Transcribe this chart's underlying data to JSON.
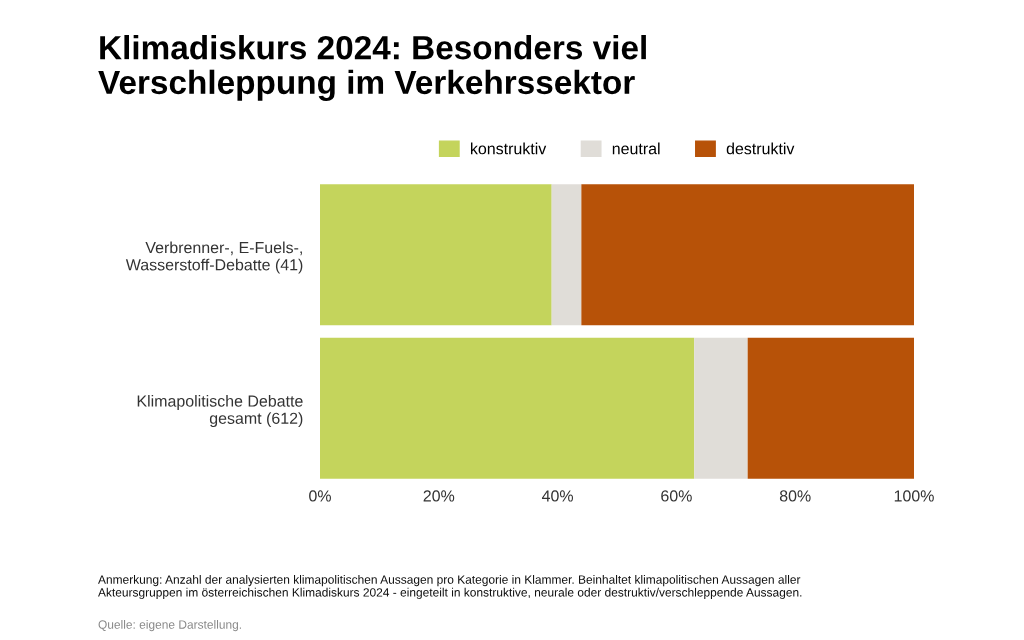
{
  "chart_data": {
    "type": "bar",
    "orientation": "horizontal",
    "stacked": true,
    "title": "Klimadiskurs 2024: Besonders viel\nVerschleppung im Verkehrssektor",
    "categories": [
      "Verbrenner-, E-Fuels-,\nWasserstoff-Debatte (41)",
      "Klimapolitische Debatte\ngesamt (612)"
    ],
    "series": [
      {
        "name": "konstruktiv",
        "color": "#c4d45c",
        "values": [
          39,
          63
        ]
      },
      {
        "name": "neutral",
        "color": "#e0ddd8",
        "values": [
          5,
          9
        ]
      },
      {
        "name": "destruktiv",
        "color": "#b75208",
        "values": [
          56,
          28
        ]
      }
    ],
    "xlim": [
      0,
      100
    ],
    "xticks": [
      {
        "value": 0,
        "label": "0%"
      },
      {
        "value": 20,
        "label": "20%"
      },
      {
        "value": 40,
        "label": "40%"
      },
      {
        "value": 60,
        "label": "60%"
      },
      {
        "value": 80,
        "label": "80%"
      },
      {
        "value": 100,
        "label": "100%"
      }
    ],
    "grid": false,
    "legend": "top",
    "annotations": [
      "Anmerkung: Anzahl der analysierten klimapolitischen Aussagen pro Kategorie in Klammer. Beinhaltet klimapolitischen Aussagen aller\nAkteursgruppen im österreichischen Klimadiskurs 2024 - eingeteilt in konstruktive, neurale oder destruktiv/verschleppende Aussagen.",
      "Quelle: eigene Darstellung."
    ]
  }
}
